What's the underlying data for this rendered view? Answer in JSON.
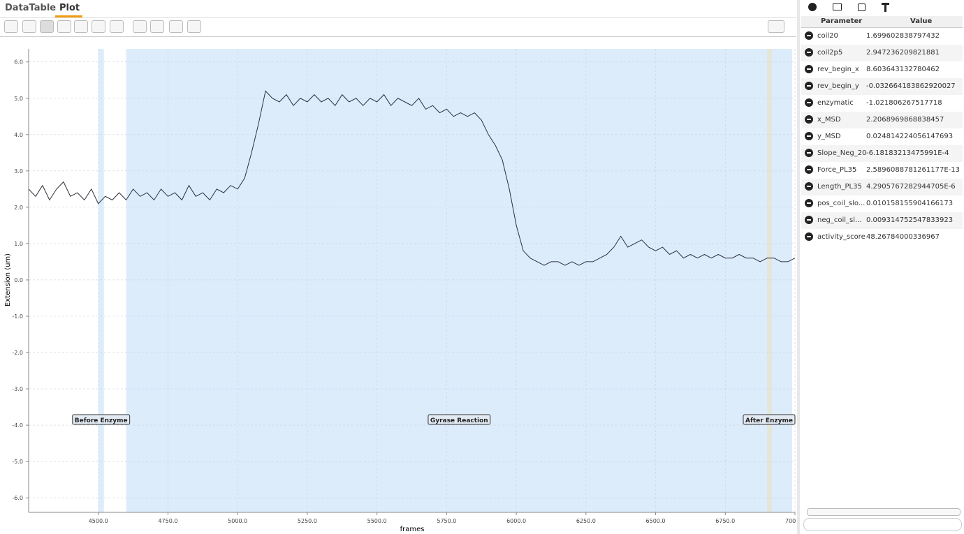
{
  "tabs": [
    "DataTable",
    "Plot"
  ],
  "plot": {
    "chart_data": {
      "type": "line",
      "x_label": "frames",
      "y_label": "Extension (um)",
      "xlim": [
        4250,
        7000
      ],
      "ylim": [
        -6.4,
        6.36
      ],
      "xticks": [
        {
          "value": 4500,
          "label": "4500.0"
        },
        {
          "value": 4750,
          "label": "4750.0"
        },
        {
          "value": 5000,
          "label": "5000.0"
        },
        {
          "value": 5250,
          "label": "5250.0"
        },
        {
          "value": 5500,
          "label": "5500.0"
        },
        {
          "value": 5750,
          "label": "5750.0"
        },
        {
          "value": 6000,
          "label": "6000.0"
        },
        {
          "value": 6250,
          "label": "6250.0"
        },
        {
          "value": 6500,
          "label": "6500.0"
        },
        {
          "value": 6750,
          "label": "6750.0"
        },
        {
          "value": 7000,
          "label": "7000.0"
        }
      ],
      "yticks": [
        {
          "value": 6,
          "label": "6.0"
        },
        {
          "value": 5,
          "label": "5.0"
        },
        {
          "value": 4,
          "label": "4.0"
        },
        {
          "value": 3,
          "label": "3.0"
        },
        {
          "value": 2,
          "label": "2.0"
        },
        {
          "value": 1,
          "label": "1.0"
        },
        {
          "value": 0,
          "label": "0.0"
        },
        {
          "value": -1,
          "label": "-1.0"
        },
        {
          "value": -2,
          "label": "-2.0"
        },
        {
          "value": -3,
          "label": "-3.0"
        },
        {
          "value": -4,
          "label": "-4.0"
        },
        {
          "value": -5,
          "label": "-5.0"
        },
        {
          "value": -6,
          "label": "-6.0"
        }
      ],
      "grid": true,
      "regions": [
        {
          "name": "Before Enzyme",
          "start": 4500,
          "end": 4520,
          "color": "#dcecfb"
        },
        {
          "name": "Gyrase Reaction",
          "start": 4600,
          "end": 6990,
          "color": "#dcecfb"
        },
        {
          "name": "After Enzyme",
          "start": 6900,
          "end": 6918,
          "color": "#e3e6d9"
        }
      ],
      "x": [
        4250,
        4275,
        4300,
        4325,
        4350,
        4375,
        4400,
        4425,
        4450,
        4475,
        4500,
        4525,
        4550,
        4575,
        4600,
        4625,
        4650,
        4675,
        4700,
        4725,
        4750,
        4775,
        4800,
        4825,
        4850,
        4875,
        4900,
        4925,
        4950,
        4975,
        5000,
        5025,
        5050,
        5075,
        5100,
        5125,
        5150,
        5175,
        5200,
        5225,
        5250,
        5275,
        5300,
        5325,
        5350,
        5375,
        5400,
        5425,
        5450,
        5475,
        5500,
        5525,
        5550,
        5575,
        5600,
        5625,
        5650,
        5675,
        5700,
        5725,
        5750,
        5775,
        5800,
        5825,
        5850,
        5875,
        5900,
        5925,
        5950,
        5975,
        6000,
        6025,
        6050,
        6075,
        6100,
        6125,
        6150,
        6175,
        6200,
        6225,
        6250,
        6275,
        6300,
        6325,
        6350,
        6375,
        6400,
        6425,
        6450,
        6475,
        6500,
        6525,
        6550,
        6575,
        6600,
        6625,
        6650,
        6675,
        6700,
        6725,
        6750,
        6775,
        6800,
        6825,
        6850,
        6875,
        6900,
        6925,
        6950,
        6975,
        7000
      ],
      "series": [
        {
          "color": "#2b3038",
          "values": [
            2.5,
            2.3,
            2.6,
            2.2,
            2.5,
            2.7,
            2.3,
            2.4,
            2.2,
            2.5,
            2.1,
            2.3,
            2.2,
            2.4,
            2.2,
            2.5,
            2.3,
            2.4,
            2.2,
            2.5,
            2.3,
            2.4,
            2.2,
            2.6,
            2.3,
            2.4,
            2.2,
            2.5,
            2.4,
            2.6,
            2.5,
            2.8,
            3.5,
            4.3,
            5.2,
            5.0,
            4.9,
            5.1,
            4.8,
            5.0,
            4.9,
            5.1,
            4.9,
            5.0,
            4.8,
            5.1,
            4.9,
            5.0,
            4.8,
            5.0,
            4.9,
            5.1,
            4.8,
            5.0,
            4.9,
            4.8,
            5.0,
            4.7,
            4.8,
            4.6,
            4.7,
            4.5,
            4.6,
            4.5,
            4.6,
            4.4,
            4.0,
            3.7,
            3.3,
            2.5,
            1.5,
            0.8,
            0.6,
            0.5,
            0.4,
            0.5,
            0.5,
            0.4,
            0.5,
            0.4,
            0.5,
            0.5,
            0.6,
            0.7,
            0.9,
            1.2,
            0.9,
            1.0,
            1.1,
            0.9,
            0.8,
            0.9,
            0.7,
            0.8,
            0.6,
            0.7,
            0.6,
            0.7,
            0.6,
            0.7,
            0.6,
            0.6,
            0.7,
            0.6,
            0.6,
            0.5,
            0.6,
            0.6,
            0.5,
            0.5,
            0.6
          ]
        }
      ]
    }
  },
  "table": {
    "headers": [
      "Parameter",
      "Value"
    ],
    "rows": [
      [
        "coil20",
        "1.699602838797432"
      ],
      [
        "coil2p5",
        "2.947236209821881"
      ],
      [
        "rev_begin_x",
        "8.603643132780462"
      ],
      [
        "rev_begin_y",
        "-0.032664183862920027"
      ],
      [
        "enzymatic",
        "-1.021806267517718"
      ],
      [
        "x_MSD",
        "2.2068969868838457"
      ],
      [
        "y_MSD",
        "0.024814224056147693"
      ],
      [
        "Slope_Neg_20",
        "-6.18183213475991E-4"
      ],
      [
        "Force_PL35",
        "2.5896088781261177E-13"
      ],
      [
        "Length_PL35",
        "4.2905767282944705E-6"
      ],
      [
        "pos_coil_slo...",
        "0.010158155904166173"
      ],
      [
        "neg_coil_sl...",
        "0.009314752547833923"
      ],
      [
        "activity_score",
        "48.26784000336967"
      ]
    ]
  }
}
